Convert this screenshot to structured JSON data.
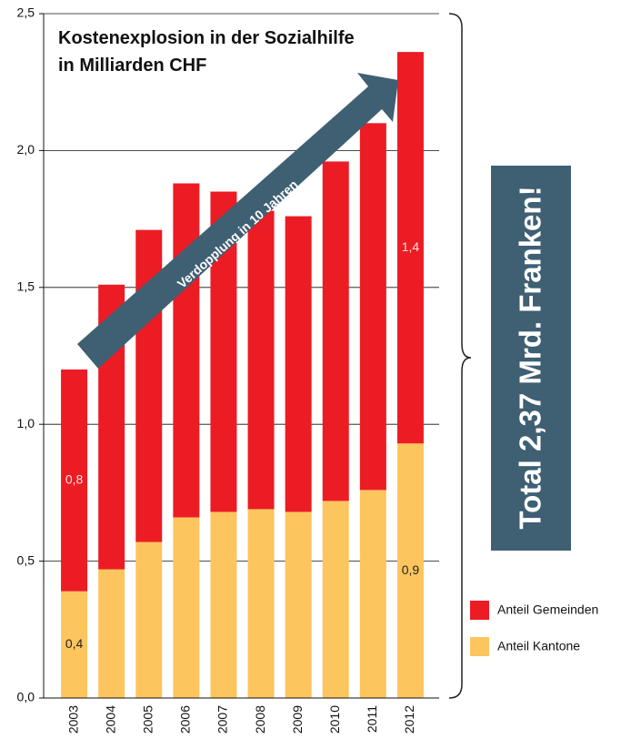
{
  "chart_data": {
    "type": "stacked_bar",
    "title": "Kostenexplosion in der Sozialhilfe",
    "subtitle": "in Milliarden CHF",
    "annotation": "Verdopplung in 10 Jahren",
    "callout": "Total 2,37 Mrd. Franken!",
    "categories": [
      "2003",
      "2004",
      "2005",
      "2006",
      "2007",
      "2008",
      "2009",
      "2010",
      "2011",
      "2012"
    ],
    "series": [
      {
        "name": "Anteil Gemeinden",
        "color": "#ec1c24",
        "values": [
          0.81,
          1.04,
          1.14,
          1.22,
          1.17,
          1.09,
          1.08,
          1.24,
          1.34,
          1.43
        ],
        "value_labels": [
          "0,8",
          null,
          null,
          null,
          null,
          null,
          null,
          null,
          null,
          "1,4"
        ]
      },
      {
        "name": "Anteil Kantone",
        "color": "#fdc55e",
        "values": [
          0.39,
          0.47,
          0.57,
          0.66,
          0.68,
          0.69,
          0.68,
          0.72,
          0.76,
          0.93
        ],
        "value_labels": [
          "0,4",
          null,
          null,
          null,
          null,
          null,
          null,
          null,
          null,
          "0,9"
        ]
      }
    ],
    "ylim": [
      0,
      2.5
    ],
    "yticks": [
      {
        "value": 0,
        "label": "0,0"
      },
      {
        "value": 0.5,
        "label": "0,5"
      },
      {
        "value": 1,
        "label": "1,0"
      },
      {
        "value": 1.5,
        "label": "1,5"
      },
      {
        "value": 2,
        "label": "2,0"
      },
      {
        "value": 2.5,
        "label": "2,5"
      }
    ],
    "grid": true
  }
}
